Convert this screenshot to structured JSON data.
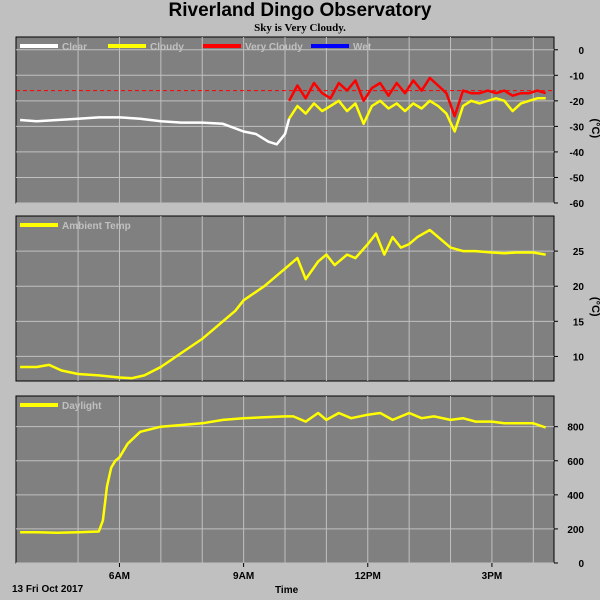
{
  "header": {
    "title": "Riverland Dingo Observatory",
    "subtitle": "Sky is Very Cloudy."
  },
  "footer": {
    "date": "13 Fri Oct 2017",
    "xlabel": "Time"
  },
  "colors": {
    "background": "#c0c0c0",
    "panel": "#808080",
    "grid": "#c0c0c0",
    "clear": "#ffffff",
    "cloudy": "#ffff00",
    "very_cloudy": "#ff0000",
    "wet": "#0000ff",
    "threshold": "#ff0000",
    "ambient": "#ffff00",
    "daylight": "#ffff00"
  },
  "chart_data": [
    {
      "type": "line",
      "name": "sky",
      "unit": "(°C)",
      "x_unit": "hours",
      "xlim": [
        3.5,
        16.5
      ],
      "ylim": [
        -60,
        5
      ],
      "y_ticks": [
        0,
        -10,
        -20,
        -30,
        -40,
        -50,
        -60
      ],
      "x_ticks": [
        6,
        9,
        12,
        15
      ],
      "x_tick_labels": [
        "6AM",
        "9AM",
        "12PM",
        "3PM"
      ],
      "x_gridlines": [
        5,
        6,
        7,
        8,
        9,
        10,
        11,
        12,
        13,
        14,
        15,
        16
      ],
      "threshold": -16,
      "legend": [
        "Clear",
        "Cloudy",
        "Very Cloudy",
        "Wet"
      ],
      "grid": true,
      "series": [
        {
          "name": "Clear",
          "color_key": "clear",
          "x": [
            3.6,
            4.0,
            4.5,
            5.0,
            5.5,
            6.0,
            6.5,
            7.0,
            7.5,
            8.0,
            8.5,
            9.0,
            9.3,
            9.6,
            9.8,
            9.9,
            10.0,
            10.1
          ],
          "y": [
            -27.5,
            -28,
            -27.5,
            -27,
            -26.5,
            -26.5,
            -27,
            -28,
            -28.5,
            -28.5,
            -29,
            -32,
            -33,
            -36,
            -37,
            -35,
            -33,
            -27
          ]
        },
        {
          "name": "Cloudy",
          "color_key": "cloudy",
          "x": [
            10.1,
            10.3,
            10.5,
            10.7,
            10.9,
            11.1,
            11.3,
            11.5,
            11.7,
            11.9,
            12.1,
            12.3,
            12.5,
            12.7,
            12.9,
            13.1,
            13.3,
            13.5,
            13.7,
            13.9,
            14.1,
            14.3,
            14.5,
            14.7,
            14.9,
            15.1,
            15.3,
            15.5,
            15.7,
            15.9,
            16.1,
            16.3
          ],
          "y": [
            -27,
            -22,
            -25,
            -21,
            -24,
            -22,
            -20,
            -24,
            -21,
            -29,
            -22,
            -20,
            -23,
            -21,
            -24,
            -21,
            -23,
            -20,
            -22,
            -25,
            -32,
            -22,
            -20,
            -21,
            -20,
            -19,
            -20,
            -24,
            -21,
            -20,
            -19,
            -19
          ]
        },
        {
          "name": "Very Cloudy",
          "color_key": "very_cloudy",
          "x": [
            10.1,
            10.3,
            10.5,
            10.7,
            10.9,
            11.1,
            11.3,
            11.5,
            11.7,
            11.9,
            12.1,
            12.3,
            12.5,
            12.7,
            12.9,
            13.1,
            13.3,
            13.5,
            13.7,
            13.9,
            14.1,
            14.3,
            14.5,
            14.7,
            14.9,
            15.1,
            15.3,
            15.5,
            15.7,
            15.9,
            16.1,
            16.3
          ],
          "y": [
            -20,
            -14,
            -19,
            -13,
            -17,
            -19,
            -13,
            -16,
            -12,
            -20,
            -15,
            -13,
            -18,
            -13,
            -17,
            -12,
            -16,
            -11,
            -14,
            -17,
            -26,
            -16,
            -17,
            -17,
            -16,
            -17,
            -16,
            -18,
            -17,
            -17,
            -16,
            -17
          ]
        },
        {
          "name": "Wet",
          "color_key": "wet",
          "x": [],
          "y": []
        }
      ]
    },
    {
      "type": "line",
      "name": "ambient",
      "unit": "(°C)",
      "x_unit": "hours",
      "xlim": [
        3.5,
        16.5
      ],
      "ylim": [
        6.5,
        30
      ],
      "y_ticks": [
        10,
        15,
        20,
        25
      ],
      "legend": [
        "Ambient Temp"
      ],
      "grid": true,
      "series": [
        {
          "name": "Ambient Temp",
          "color_key": "ambient",
          "x": [
            3.6,
            4.0,
            4.3,
            4.6,
            5.0,
            5.5,
            6.0,
            6.3,
            6.6,
            7.0,
            7.5,
            8.0,
            8.5,
            8.8,
            9.0,
            9.5,
            9.8,
            10.0,
            10.3,
            10.5,
            10.8,
            11.0,
            11.2,
            11.5,
            11.7,
            12.0,
            12.2,
            12.4,
            12.6,
            12.8,
            13.0,
            13.2,
            13.5,
            13.8,
            14.0,
            14.3,
            14.6,
            15.0,
            15.3,
            15.6,
            16.0,
            16.3
          ],
          "y": [
            8.5,
            8.5,
            8.8,
            8.0,
            7.5,
            7.3,
            7.0,
            6.9,
            7.3,
            8.5,
            10.5,
            12.5,
            15.0,
            16.5,
            18.0,
            20.0,
            21.5,
            22.5,
            24.0,
            21.0,
            23.5,
            24.5,
            23.0,
            24.5,
            24.0,
            26.0,
            27.5,
            24.5,
            27.0,
            25.5,
            26.0,
            27.0,
            28.0,
            26.5,
            25.5,
            25.0,
            25.0,
            24.8,
            24.7,
            24.8,
            24.8,
            24.5
          ]
        }
      ]
    },
    {
      "type": "line",
      "name": "daylight",
      "unit": "",
      "x_unit": "hours",
      "xlim": [
        3.5,
        16.5
      ],
      "ylim": [
        0,
        980
      ],
      "y_ticks": [
        0,
        200,
        400,
        600,
        800
      ],
      "legend": [
        "Daylight"
      ],
      "grid": true,
      "series": [
        {
          "name": "Daylight",
          "color_key": "daylight",
          "x": [
            3.6,
            4.0,
            4.5,
            5.0,
            5.5,
            5.6,
            5.7,
            5.8,
            5.9,
            6.0,
            6.2,
            6.5,
            7.0,
            7.5,
            8.0,
            8.5,
            9.0,
            9.5,
            10.0,
            10.2,
            10.5,
            10.8,
            11.0,
            11.3,
            11.6,
            12.0,
            12.3,
            12.6,
            13.0,
            13.3,
            13.6,
            14.0,
            14.3,
            14.6,
            15.0,
            15.3,
            15.6,
            16.0,
            16.3
          ],
          "y": [
            180,
            180,
            178,
            180,
            185,
            250,
            450,
            560,
            600,
            620,
            700,
            770,
            800,
            810,
            820,
            840,
            850,
            855,
            860,
            860,
            830,
            880,
            840,
            880,
            850,
            870,
            880,
            840,
            880,
            850,
            860,
            840,
            850,
            830,
            830,
            820,
            820,
            820,
            795
          ]
        }
      ]
    }
  ]
}
